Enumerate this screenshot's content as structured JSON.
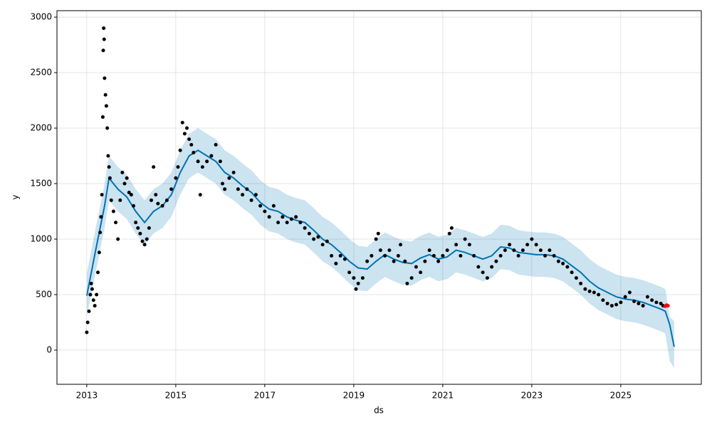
{
  "chart_data": {
    "type": "line",
    "x_label": "ds",
    "y_label": "y",
    "xlim": [
      2012.33,
      2026.81
    ],
    "ylim": [
      -308,
      3058
    ],
    "xticks": [
      2013,
      2015,
      2017,
      2019,
      2021,
      2023,
      2025
    ],
    "yticks": [
      0,
      500,
      1000,
      1500,
      2000,
      2500,
      3000
    ],
    "grid": true,
    "band": {
      "color": "#0072b2",
      "x": [
        2013.0,
        2013.2,
        2013.4,
        2013.5,
        2013.7,
        2013.9,
        2014.1,
        2014.3,
        2014.5,
        2014.7,
        2014.9,
        2015.1,
        2015.3,
        2015.5,
        2015.7,
        2015.9,
        2016.1,
        2016.3,
        2016.5,
        2016.7,
        2016.9,
        2017.1,
        2017.3,
        2017.5,
        2017.7,
        2017.9,
        2018.1,
        2018.3,
        2018.5,
        2018.7,
        2018.9,
        2019.1,
        2019.3,
        2019.5,
        2019.7,
        2019.9,
        2020.1,
        2020.3,
        2020.5,
        2020.7,
        2020.9,
        2021.1,
        2021.3,
        2021.5,
        2021.7,
        2021.9,
        2022.1,
        2022.3,
        2022.5,
        2022.7,
        2022.9,
        2023.1,
        2023.3,
        2023.5,
        2023.7,
        2023.9,
        2024.1,
        2024.3,
        2024.5,
        2024.7,
        2024.9,
        2025.1,
        2025.3,
        2025.5,
        2025.7,
        2025.9,
        2026.0,
        2026.1,
        2026.2
      ],
      "lower": [
        300,
        700,
        1100,
        1350,
        1250,
        1180,
        1050,
        950,
        1050,
        1100,
        1200,
        1400,
        1550,
        1600,
        1550,
        1500,
        1400,
        1350,
        1280,
        1220,
        1130,
        1070,
        1050,
        1000,
        970,
        950,
        880,
        800,
        750,
        680,
        600,
        540,
        530,
        600,
        660,
        620,
        590,
        580,
        630,
        660,
        620,
        640,
        700,
        680,
        650,
        620,
        650,
        730,
        720,
        680,
        670,
        660,
        660,
        650,
        620,
        560,
        500,
        420,
        360,
        320,
        280,
        260,
        250,
        230,
        200,
        170,
        150,
        -100,
        -160
      ],
      "upper": [
        690,
        1100,
        1500,
        1750,
        1650,
        1580,
        1450,
        1350,
        1450,
        1500,
        1600,
        1800,
        1950,
        2000,
        1950,
        1900,
        1800,
        1750,
        1680,
        1620,
        1530,
        1470,
        1450,
        1400,
        1370,
        1350,
        1280,
        1200,
        1150,
        1080,
        1000,
        940,
        930,
        1000,
        1060,
        1020,
        990,
        980,
        1030,
        1060,
        1020,
        1040,
        1100,
        1080,
        1050,
        1020,
        1050,
        1130,
        1120,
        1080,
        1070,
        1060,
        1060,
        1050,
        1020,
        960,
        900,
        820,
        760,
        720,
        680,
        660,
        650,
        630,
        600,
        570,
        550,
        300,
        260
      ]
    },
    "series": [
      {
        "style": "line",
        "color": "#0072b2",
        "x": [
          2013.0,
          2013.2,
          2013.4,
          2013.5,
          2013.7,
          2013.9,
          2014.1,
          2014.3,
          2014.5,
          2014.7,
          2014.9,
          2015.1,
          2015.3,
          2015.5,
          2015.7,
          2015.9,
          2016.1,
          2016.3,
          2016.5,
          2016.7,
          2016.9,
          2017.1,
          2017.3,
          2017.5,
          2017.7,
          2017.9,
          2018.1,
          2018.3,
          2018.5,
          2018.7,
          2018.9,
          2019.1,
          2019.3,
          2019.5,
          2019.7,
          2019.9,
          2020.1,
          2020.3,
          2020.5,
          2020.7,
          2020.9,
          2021.1,
          2021.3,
          2021.5,
          2021.7,
          2021.9,
          2022.1,
          2022.3,
          2022.5,
          2022.7,
          2022.9,
          2023.1,
          2023.3,
          2023.5,
          2023.7,
          2023.9,
          2024.1,
          2024.3,
          2024.5,
          2024.7,
          2024.9,
          2025.1,
          2025.3,
          2025.5,
          2025.7,
          2025.9,
          2026.0,
          2026.1,
          2026.2
        ],
        "values": [
          490,
          900,
          1300,
          1550,
          1450,
          1380,
          1250,
          1150,
          1250,
          1300,
          1400,
          1600,
          1750,
          1800,
          1750,
          1700,
          1600,
          1550,
          1480,
          1420,
          1330,
          1270,
          1250,
          1200,
          1170,
          1150,
          1080,
          1000,
          950,
          880,
          800,
          740,
          730,
          800,
          860,
          820,
          790,
          780,
          830,
          860,
          820,
          840,
          900,
          880,
          850,
          820,
          850,
          930,
          920,
          880,
          870,
          860,
          860,
          850,
          820,
          760,
          700,
          620,
          560,
          520,
          480,
          460,
          450,
          430,
          400,
          370,
          350,
          230,
          30
        ]
      },
      {
        "style": "points",
        "color": "#000000",
        "x": [
          2013.0,
          2013.02,
          2013.05,
          2013.08,
          2013.1,
          2013.12,
          2013.15,
          2013.18,
          2013.22,
          2013.25,
          2013.28,
          2013.3,
          2013.32,
          2013.34,
          2013.36,
          2013.37,
          2013.38,
          2013.39,
          2013.4,
          2013.42,
          2013.44,
          2013.46,
          2013.48,
          2013.5,
          2013.52,
          2013.55,
          2013.6,
          2013.65,
          2013.7,
          2013.75,
          2013.8,
          2013.85,
          2013.9,
          2013.95,
          2014.0,
          2014.05,
          2014.1,
          2014.15,
          2014.2,
          2014.25,
          2014.3,
          2014.35,
          2014.4,
          2014.45,
          2014.5,
          2014.55,
          2014.6,
          2014.7,
          2014.8,
          2014.9,
          2015.0,
          2015.05,
          2015.1,
          2015.15,
          2015.2,
          2015.25,
          2015.3,
          2015.35,
          2015.4,
          2015.5,
          2015.55,
          2015.6,
          2015.7,
          2015.8,
          2015.9,
          2016.0,
          2016.05,
          2016.1,
          2016.2,
          2016.3,
          2016.4,
          2016.5,
          2016.6,
          2016.7,
          2016.8,
          2016.9,
          2017.0,
          2017.1,
          2017.2,
          2017.3,
          2017.4,
          2017.5,
          2017.6,
          2017.7,
          2017.8,
          2017.9,
          2018.0,
          2018.1,
          2018.2,
          2018.3,
          2018.4,
          2018.5,
          2018.6,
          2018.7,
          2018.8,
          2018.9,
          2019.0,
          2019.05,
          2019.1,
          2019.2,
          2019.3,
          2019.4,
          2019.5,
          2019.55,
          2019.6,
          2019.7,
          2019.8,
          2019.9,
          2020.0,
          2020.05,
          2020.15,
          2020.2,
          2020.3,
          2020.4,
          2020.5,
          2020.6,
          2020.7,
          2020.8,
          2020.9,
          2021.0,
          2021.1,
          2021.15,
          2021.2,
          2021.3,
          2021.4,
          2021.5,
          2021.6,
          2021.7,
          2021.8,
          2021.9,
          2022.0,
          2022.1,
          2022.2,
          2022.3,
          2022.4,
          2022.5,
          2022.6,
          2022.7,
          2022.8,
          2022.9,
          2023.0,
          2023.1,
          2023.2,
          2023.3,
          2023.4,
          2023.5,
          2023.6,
          2023.7,
          2023.8,
          2023.9,
          2024.0,
          2024.1,
          2024.2,
          2024.3,
          2024.4,
          2024.5,
          2024.6,
          2024.7,
          2024.8,
          2024.9,
          2025.0,
          2025.1,
          2025.2,
          2025.3,
          2025.4,
          2025.5,
          2025.6,
          2025.7,
          2025.8,
          2025.9,
          2025.95
        ],
        "values": [
          160,
          250,
          350,
          500,
          600,
          550,
          450,
          400,
          500,
          700,
          880,
          1060,
          1200,
          1400,
          2100,
          2700,
          2900,
          2800,
          2450,
          2300,
          2200,
          2000,
          1750,
          1650,
          1550,
          1350,
          1250,
          1150,
          1000,
          1350,
          1600,
          1500,
          1550,
          1420,
          1400,
          1300,
          1150,
          1100,
          1050,
          980,
          950,
          1000,
          1100,
          1350,
          1650,
          1400,
          1320,
          1300,
          1350,
          1450,
          1550,
          1650,
          1800,
          2050,
          1950,
          2000,
          1900,
          1850,
          1780,
          1700,
          1400,
          1650,
          1700,
          1750,
          1850,
          1700,
          1500,
          1450,
          1550,
          1600,
          1450,
          1400,
          1450,
          1350,
          1400,
          1300,
          1250,
          1200,
          1300,
          1150,
          1200,
          1150,
          1180,
          1200,
          1150,
          1100,
          1050,
          1000,
          1020,
          950,
          980,
          850,
          780,
          850,
          820,
          700,
          650,
          550,
          600,
          650,
          800,
          850,
          1000,
          1050,
          900,
          850,
          900,
          800,
          850,
          950,
          800,
          600,
          650,
          750,
          700,
          800,
          900,
          850,
          800,
          850,
          900,
          1050,
          1100,
          950,
          850,
          1000,
          950,
          850,
          750,
          700,
          650,
          750,
          800,
          850,
          900,
          950,
          900,
          850,
          900,
          950,
          1000,
          950,
          900,
          850,
          900,
          850,
          800,
          780,
          750,
          700,
          650,
          600,
          550,
          530,
          520,
          500,
          450,
          420,
          400,
          410,
          430,
          480,
          520,
          440,
          420,
          400,
          480,
          450,
          430,
          420,
          400
        ]
      },
      {
        "style": "points",
        "color": "#ff0000",
        "x": [
          2026.0,
          2026.03,
          2026.06
        ],
        "values": [
          395,
          405,
          400
        ]
      }
    ]
  }
}
